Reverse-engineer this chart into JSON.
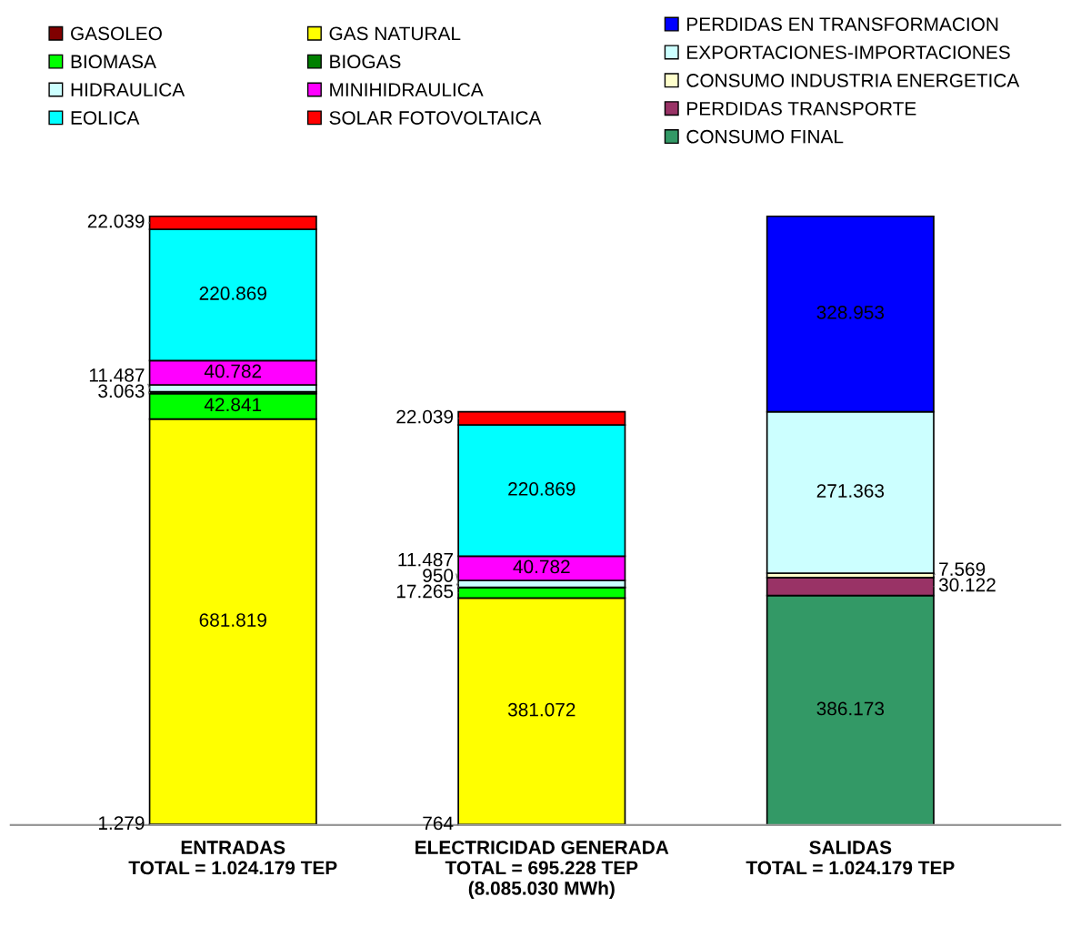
{
  "chart_data": {
    "type": "bar",
    "stacked": true,
    "legend": "top",
    "categories": [
      "ENTRADAS\nTOTAL = 1.024.179 TEP",
      "ELECTRICIDAD GENERADA\nTOTAL = 695.228 TEP\n(8.085.030 MWh)",
      "SALIDAS\nTOTAL = 1.024.179 TEP"
    ],
    "series": [
      {
        "name": "GASOLEO",
        "color": "#800000",
        "values": [
          1279,
          764,
          null
        ],
        "value_labels": [
          "1.279",
          "764",
          null
        ]
      },
      {
        "name": "GAS NATURAL",
        "color": "#ffff00",
        "values": [
          681819,
          381072,
          null
        ],
        "value_labels": [
          "681.819",
          "381.072",
          null
        ]
      },
      {
        "name": "BIOMASA",
        "color": "#00ff00",
        "values": [
          42841,
          17265,
          null
        ],
        "value_labels": [
          "42.841",
          "17.265",
          null
        ]
      },
      {
        "name": "BIOGAS",
        "color": "#008000",
        "values": [
          3063,
          950,
          null
        ],
        "value_labels": [
          "3.063",
          "950",
          null
        ]
      },
      {
        "name": "HIDRAULICA",
        "color": "#ccffff",
        "values": [
          11487,
          11487,
          null
        ],
        "value_labels": [
          "11.487",
          "11.487",
          null
        ]
      },
      {
        "name": "MINIHIDRAULICA",
        "color": "#ff00ff",
        "values": [
          40782,
          40782,
          null
        ],
        "value_labels": [
          "40.782",
          "40.782",
          null
        ]
      },
      {
        "name": "EOLICA",
        "color": "#00ffff",
        "values": [
          220869,
          220869,
          null
        ],
        "value_labels": [
          "220.869",
          "220.869",
          null
        ]
      },
      {
        "name": "SOLAR FOTOVOLTAICA",
        "color": "#ff0000",
        "values": [
          22039,
          22039,
          null
        ],
        "value_labels": [
          "22.039",
          "22.039",
          null
        ]
      },
      {
        "name": "CONSUMO FINAL",
        "color": "#339966",
        "values": [
          null,
          null,
          386173
        ],
        "value_labels": [
          null,
          null,
          "386.173"
        ]
      },
      {
        "name": "PERDIDAS TRANSPORTE",
        "color": "#993366",
        "values": [
          null,
          null,
          30122
        ],
        "value_labels": [
          null,
          null,
          "30.122"
        ]
      },
      {
        "name": "CONSUMO INDUSTRIA ENERGETICA",
        "color": "#ffffcc",
        "values": [
          null,
          null,
          7569
        ],
        "value_labels": [
          null,
          null,
          "7.569"
        ]
      },
      {
        "name": "EXPORTACIONES-IMPORTACIONES",
        "color": "#ccffff",
        "values": [
          null,
          null,
          271363
        ],
        "value_labels": [
          null,
          null,
          "271.363"
        ]
      },
      {
        "name": "PERDIDAS EN TRANSFORMACION",
        "color": "#0000ff",
        "values": [
          null,
          null,
          328953
        ],
        "value_labels": [
          null,
          null,
          "328.953"
        ]
      }
    ]
  }
}
